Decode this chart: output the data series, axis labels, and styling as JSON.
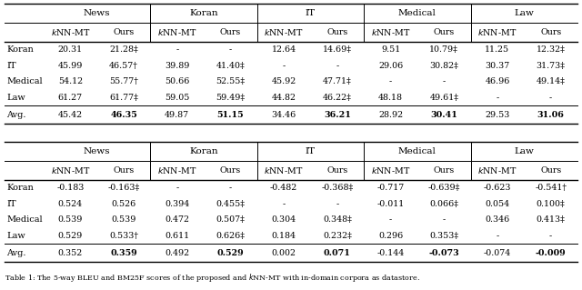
{
  "table1": {
    "domains": [
      "News",
      "Koran",
      "IT",
      "Medical",
      "Law"
    ],
    "row_labels": [
      "Koran",
      "IT",
      "Medical",
      "Law",
      "Avg."
    ],
    "data": {
      "Koran": [
        "20.31",
        "21.28‡",
        "-",
        "-",
        "12.64",
        "14.69‡",
        "9.51",
        "10.79‡",
        "11.25",
        "12.32‡"
      ],
      "IT": [
        "45.99",
        "46.57†",
        "39.89",
        "41.40‡",
        "-",
        "-",
        "29.06",
        "30.82‡",
        "30.37",
        "31.73‡"
      ],
      "Medical": [
        "54.12",
        "55.77†",
        "50.66",
        "52.55‡",
        "45.92",
        "47.71‡",
        "-",
        "-",
        "46.96",
        "49.14‡"
      ],
      "Law": [
        "61.27",
        "61.77‡",
        "59.05",
        "59.49‡",
        "44.82",
        "46.22‡",
        "48.18",
        "49.61‡",
        "-",
        "-"
      ],
      "Avg.": [
        "45.42",
        "46.35",
        "49.87",
        "51.15",
        "34.46",
        "36.21",
        "28.92",
        "30.41",
        "29.53",
        "31.06"
      ]
    }
  },
  "table2": {
    "domains": [
      "News",
      "Koran",
      "IT",
      "Medical",
      "Law"
    ],
    "row_labels": [
      "Koran",
      "IT",
      "Medical",
      "Law",
      "Avg."
    ],
    "data": {
      "Koran": [
        "-0.183",
        "-0.163‡",
        "-",
        "-",
        "-0.482",
        "-0.368‡",
        "-0.717",
        "-0.639‡",
        "-0.623",
        "-0.541†"
      ],
      "IT": [
        "0.524",
        "0.526",
        "0.394",
        "0.455‡",
        "-",
        "-",
        "-0.011",
        "0.066‡",
        "0.054",
        "0.100‡"
      ],
      "Medical": [
        "0.539",
        "0.539",
        "0.472",
        "0.507‡",
        "0.304",
        "0.348‡",
        "-",
        "-",
        "0.346",
        "0.413‡"
      ],
      "Law": [
        "0.529",
        "0.533†",
        "0.611",
        "0.626‡",
        "0.184",
        "0.232‡",
        "0.296",
        "0.353‡",
        "-",
        "-"
      ],
      "Avg.": [
        "0.352",
        "0.359",
        "0.492",
        "0.529",
        "0.002",
        "0.071",
        "-0.144",
        "-0.073",
        "-0.074",
        "-0.009"
      ]
    }
  },
  "caption": "Table 1: The 5-way BLEU and BM25F scores of the proposed and $k$NN-MT with in-domain corpora as datastore."
}
